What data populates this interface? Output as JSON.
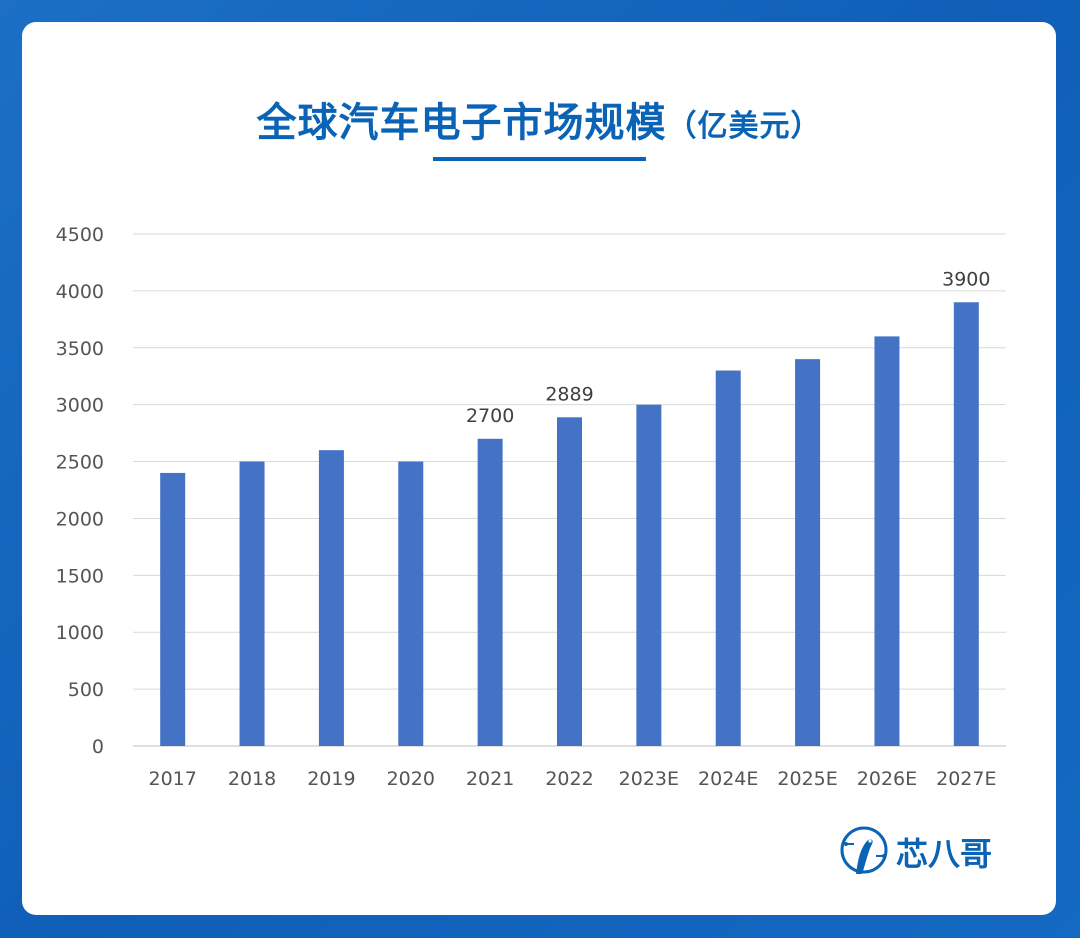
{
  "chart_data": {
    "type": "bar",
    "title": "全球汽车电子市场规模",
    "title_unit": "（亿美元）",
    "categories": [
      "2017",
      "2018",
      "2019",
      "2020",
      "2021",
      "2022",
      "2023E",
      "2024E",
      "2025E",
      "2026E",
      "2027E"
    ],
    "values": [
      2400,
      2500,
      2600,
      2500,
      2700,
      2889,
      3000,
      3300,
      3400,
      3600,
      3900
    ],
    "data_labels": [
      null,
      null,
      null,
      null,
      "2700",
      "2889",
      null,
      null,
      null,
      null,
      "3900"
    ],
    "ylim": [
      0,
      4500
    ],
    "yticks": [
      "0",
      "500",
      "1000",
      "1500",
      "2000",
      "2500",
      "3000",
      "3500",
      "4000",
      "4500"
    ],
    "grid": true,
    "bar_color": "#4472c4"
  },
  "logo": {
    "text": "芯八哥",
    "icon": "bird-circuit-icon",
    "color": "#0a63b5"
  }
}
